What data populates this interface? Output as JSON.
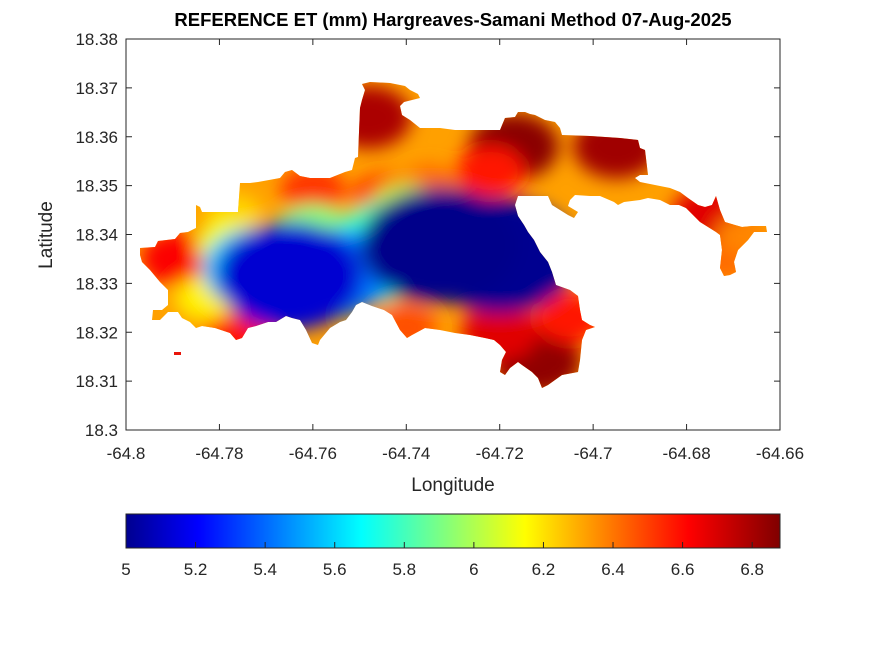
{
  "chart_data": {
    "type": "heatmap",
    "subtype": "filled-contour-map",
    "title": "REFERENCE ET (mm) Hargreaves-Samani Method  07-Aug-2025",
    "xlabel": "Longitude",
    "ylabel": "Latitude",
    "xlim": [
      -64.8,
      -64.66
    ],
    "ylim": [
      18.3,
      18.38
    ],
    "xticks": [
      -64.8,
      -64.78,
      -64.76,
      -64.74,
      -64.72,
      -64.7,
      -64.68,
      -64.66
    ],
    "xtick_labels": [
      "-64.8",
      "-64.78",
      "-64.76",
      "-64.74",
      "-64.72",
      "-64.7",
      "-64.68",
      "-64.66"
    ],
    "yticks": [
      18.3,
      18.31,
      18.32,
      18.33,
      18.34,
      18.35,
      18.36,
      18.37,
      18.38
    ],
    "ytick_labels": [
      "18.3",
      "18.31",
      "18.32",
      "18.33",
      "18.34",
      "18.35",
      "18.36",
      "18.37",
      "18.38"
    ],
    "grid": false,
    "colormap": "jet",
    "colorbar": {
      "location": "bottom",
      "range": [
        5.0,
        6.88
      ],
      "ticks": [
        5,
        5.2,
        5.4,
        5.6,
        5.8,
        6,
        6.2,
        6.4,
        6.6,
        6.8
      ],
      "tick_labels": [
        "5",
        "5.2",
        "5.4",
        "5.6",
        "5.8",
        "6",
        "6.2",
        "6.4",
        "6.6",
        "6.8"
      ]
    },
    "background_value": 6.35,
    "points": [
      {
        "lon": -64.733,
        "lat": 18.3378,
        "value": 5.02
      },
      {
        "lon": -64.72,
        "lat": 18.3357,
        "value": 5.03
      },
      {
        "lon": -64.765,
        "lat": 18.3315,
        "value": 5.15
      },
      {
        "lon": -64.727,
        "lat": 18.336,
        "value": 5.3
      },
      {
        "lon": -64.757,
        "lat": 18.332,
        "value": 5.45
      },
      {
        "lon": -64.748,
        "lat": 18.334,
        "value": 5.65
      },
      {
        "lon": -64.772,
        "lat": 18.333,
        "value": 5.6
      },
      {
        "lon": -64.745,
        "lat": 18.34,
        "value": 5.85
      },
      {
        "lon": -64.76,
        "lat": 18.34,
        "value": 5.95
      },
      {
        "lon": -64.74,
        "lat": 18.345,
        "value": 6.05
      },
      {
        "lon": -64.778,
        "lat": 18.338,
        "value": 6.15
      },
      {
        "lon": -64.783,
        "lat": 18.327,
        "value": 6.2
      },
      {
        "lon": -64.777,
        "lat": 18.344,
        "value": 6.25
      },
      {
        "lon": -64.789,
        "lat": 18.335,
        "value": 6.65
      },
      {
        "lon": -64.776,
        "lat": 18.319,
        "value": 6.6
      },
      {
        "lon": -64.745,
        "lat": 18.3475,
        "value": 6.55
      },
      {
        "lon": -64.735,
        "lat": 18.35,
        "value": 6.45
      },
      {
        "lon": -64.76,
        "lat": 18.349,
        "value": 6.55
      },
      {
        "lon": -64.748,
        "lat": 18.364,
        "value": 6.8
      },
      {
        "lon": -64.717,
        "lat": 18.358,
        "value": 6.86
      },
      {
        "lon": -64.722,
        "lat": 18.353,
        "value": 6.6
      },
      {
        "lon": -64.695,
        "lat": 18.358,
        "value": 6.82
      },
      {
        "lon": -64.712,
        "lat": 18.314,
        "value": 6.85
      },
      {
        "lon": -64.72,
        "lat": 18.32,
        "value": 6.7
      },
      {
        "lon": -64.74,
        "lat": 18.321,
        "value": 6.5
      },
      {
        "lon": -64.705,
        "lat": 18.323,
        "value": 6.6
      },
      {
        "lon": -64.675,
        "lat": 18.344,
        "value": 6.7
      },
      {
        "lon": -64.668,
        "lat": 18.34,
        "value": 6.4
      },
      {
        "lon": -64.672,
        "lat": 18.335,
        "value": 6.45
      }
    ]
  }
}
